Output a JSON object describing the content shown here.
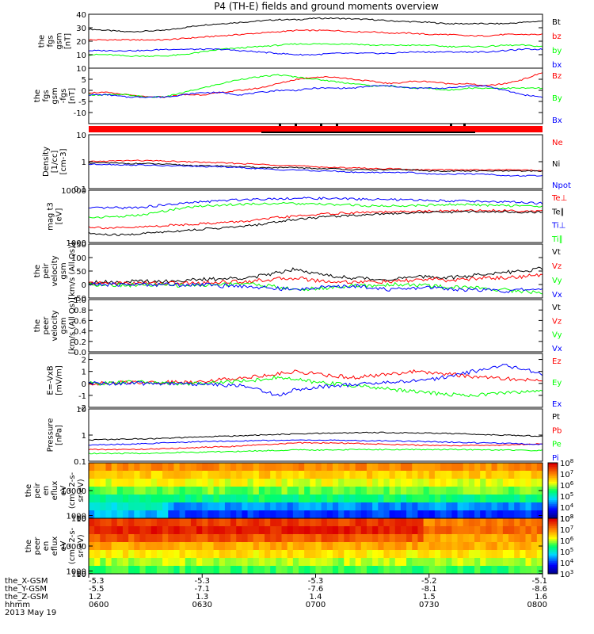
{
  "title": "P4 (TH-E) fields and ground moments overview",
  "colors": {
    "black": "#000000",
    "red": "#ff0000",
    "green": "#00ff00",
    "blue": "#0000ff"
  },
  "chart_data": [
    {
      "type": "line",
      "id": "fgs_mag",
      "ylabel": [
        "the",
        "fgs",
        "gsm",
        "[nT]"
      ],
      "ylim": [
        0,
        40
      ],
      "yticks": [
        10,
        20,
        30,
        40
      ],
      "series": [
        {
          "name": "Bt",
          "color": "black",
          "values": [
            29,
            28,
            27,
            27.5,
            28,
            30,
            32,
            33,
            34,
            35,
            36,
            36,
            37,
            37,
            36.5,
            36,
            35,
            34.5,
            34,
            33,
            33,
            33,
            33,
            34,
            35
          ]
        },
        {
          "name": "bz",
          "color": "red",
          "values": [
            21,
            21,
            21,
            21,
            21,
            22,
            23,
            24,
            25,
            26,
            27,
            28,
            28,
            28,
            27,
            27,
            26,
            26,
            25,
            25,
            24,
            24,
            25,
            25,
            25
          ]
        },
        {
          "name": "by",
          "color": "green",
          "values": [
            10,
            10,
            9,
            9,
            9,
            10,
            12,
            14,
            15,
            16,
            17,
            18,
            18,
            18,
            18,
            17,
            17,
            17,
            17,
            16,
            16,
            16,
            17,
            17,
            16
          ]
        },
        {
          "name": "bx",
          "color": "blue",
          "values": [
            13,
            13,
            13,
            13,
            14,
            14,
            14,
            14,
            13,
            12,
            11,
            10,
            10,
            11,
            11,
            11,
            11,
            12,
            12,
            12,
            12,
            12,
            13,
            14,
            14
          ]
        }
      ]
    },
    {
      "type": "line",
      "id": "fgs_comp",
      "ylabel": [
        "the",
        "fgs",
        "gsm",
        "-fgs",
        "[nT]"
      ],
      "ylim": [
        -15,
        10
      ],
      "yticks": [
        -10,
        -5,
        0,
        5,
        10
      ],
      "series": [
        {
          "name": "Bz",
          "color": "red",
          "values": [
            -1,
            -1,
            -2,
            -3,
            -3,
            -2,
            -2,
            -1,
            0,
            1,
            3,
            5,
            6,
            6,
            5,
            4,
            3,
            4,
            4,
            3,
            3,
            2,
            3,
            5,
            8
          ]
        },
        {
          "name": "By",
          "color": "green",
          "values": [
            -2,
            -2,
            -2,
            -3,
            -3,
            -1,
            1,
            3,
            5,
            6,
            7,
            6,
            5,
            4,
            3,
            2,
            2,
            1,
            1,
            0,
            1,
            1,
            1,
            1,
            1
          ]
        },
        {
          "name": "Bx",
          "color": "blue",
          "values": [
            -2,
            -2,
            -3,
            -3,
            -3,
            -2,
            -1,
            -1,
            -2,
            -1,
            0,
            0,
            1,
            1,
            1,
            2,
            2,
            1,
            1,
            1,
            2,
            2,
            0,
            -2,
            -3
          ]
        }
      ]
    },
    {
      "type": "line",
      "id": "density",
      "log": true,
      "ylabel": [
        "Density",
        "[1/cc]",
        "[cm-3]"
      ],
      "ylim": [
        0.1,
        10
      ],
      "yticks": [
        0.1,
        1.0,
        10.0
      ],
      "series": [
        {
          "name": "Ne",
          "color": "red",
          "values": [
            1.0,
            1.05,
            1.1,
            1.1,
            1.05,
            1.0,
            0.95,
            0.9,
            0.85,
            0.8,
            0.75,
            0.7,
            0.65,
            0.6,
            0.6,
            0.55,
            0.55,
            0.5,
            0.5,
            0.5,
            0.5,
            0.5,
            0.5,
            0.5,
            0.45
          ]
        },
        {
          "name": "Ni",
          "color": "black",
          "values": [
            0.9,
            0.9,
            0.85,
            0.85,
            0.8,
            0.75,
            0.7,
            0.7,
            0.65,
            0.6,
            0.6,
            0.6,
            0.55,
            0.55,
            0.5,
            0.5,
            0.5,
            0.5,
            0.45,
            0.45,
            0.45,
            0.45,
            0.45,
            0.45,
            0.45
          ]
        },
        {
          "name": "Npot",
          "color": "blue",
          "values": [
            0.8,
            0.8,
            0.75,
            0.75,
            0.7,
            0.7,
            0.65,
            0.65,
            0.6,
            0.55,
            0.5,
            0.5,
            0.45,
            0.45,
            0.4,
            0.4,
            0.4,
            0.4,
            0.35,
            0.35,
            0.35,
            0.35,
            0.3,
            0.3,
            0.3
          ]
        }
      ]
    },
    {
      "type": "line",
      "id": "temps",
      "log": true,
      "ylabel": [
        "mag t3",
        "[eV]"
      ],
      "ylim": [
        1000,
        10000
      ],
      "yticks": [
        1000,
        10000
      ],
      "series": [
        {
          "name": "Te⊥",
          "color": "red",
          "values": [
            2000,
            1900,
            1900,
            2000,
            2100,
            2200,
            2300,
            2400,
            2500,
            2700,
            3000,
            3200,
            3400,
            3600,
            3700,
            3800,
            3800,
            3900,
            4000,
            4000,
            4100,
            4100,
            4100,
            4000,
            4000
          ]
        },
        {
          "name": "Te∥",
          "color": "black",
          "values": [
            1500,
            1400,
            1400,
            1500,
            1600,
            1700,
            1800,
            1900,
            2000,
            2200,
            2500,
            2800,
            3000,
            3200,
            3300,
            3500,
            3600,
            3700,
            3800,
            3800,
            3900,
            3900,
            3900,
            3800,
            3800
          ]
        },
        {
          "name": "Ti⊥",
          "color": "blue",
          "values": [
            4500,
            4600,
            4600,
            4800,
            5200,
            5600,
            6000,
            6300,
            6600,
            6800,
            6900,
            7000,
            7000,
            6900,
            6800,
            6700,
            6600,
            6500,
            6400,
            6300,
            6200,
            6100,
            6000,
            5800,
            5600
          ]
        },
        {
          "name": "Ti∥",
          "color": "green",
          "values": [
            3000,
            3100,
            3200,
            3400,
            4000,
            4600,
            5000,
            5200,
            5400,
            5500,
            5600,
            5500,
            5400,
            5300,
            5200,
            5000,
            5000,
            5100,
            5200,
            5300,
            5300,
            5200,
            5100,
            5000,
            4900
          ]
        }
      ]
    },
    {
      "type": "line",
      "id": "peir_vel",
      "ylabel": [
        "the",
        "peir",
        "velocity",
        "gsm",
        "[km/s (All Qs)]"
      ],
      "ylim": [
        -50,
        150
      ],
      "yticks": [
        -50,
        0,
        50,
        100,
        150
      ],
      "series": [
        {
          "name": "Vt",
          "color": "black",
          "values": [
            10,
            10,
            10,
            12,
            12,
            15,
            18,
            20,
            25,
            30,
            45,
            60,
            40,
            30,
            25,
            20,
            20,
            25,
            30,
            25,
            30,
            40,
            45,
            50,
            60
          ]
        },
        {
          "name": "Vz",
          "color": "red",
          "values": [
            5,
            5,
            5,
            5,
            5,
            5,
            5,
            10,
            10,
            15,
            20,
            25,
            15,
            10,
            10,
            10,
            10,
            15,
            20,
            15,
            20,
            25,
            25,
            30,
            35
          ]
        },
        {
          "name": "Vy",
          "color": "green",
          "values": [
            0,
            0,
            -2,
            -2,
            -3,
            -3,
            -3,
            0,
            5,
            0,
            -10,
            -20,
            -15,
            -10,
            -5,
            -5,
            0,
            0,
            -5,
            -10,
            -10,
            -15,
            -20,
            -25,
            -30
          ]
        },
        {
          "name": "Vx",
          "color": "blue",
          "values": [
            0,
            0,
            0,
            0,
            0,
            0,
            0,
            -5,
            -5,
            -10,
            -15,
            -20,
            -10,
            -10,
            -5,
            -10,
            -20,
            -15,
            -10,
            -15,
            -20,
            -20,
            -25,
            -20,
            -15
          ]
        }
      ]
    },
    {
      "type": "line",
      "id": "peer_vel",
      "ylabel": [
        "the",
        "peer",
        "velocity",
        "gsm",
        "[km/s (All Qs)]"
      ],
      "ylim": [
        0,
        1
      ],
      "yticks": [
        0.0,
        0.2,
        0.4,
        0.6,
        0.8,
        1.0
      ],
      "series": [
        {
          "name": "Vt",
          "color": "black",
          "values": []
        },
        {
          "name": "Vz",
          "color": "red",
          "values": []
        },
        {
          "name": "Vy",
          "color": "green",
          "values": []
        },
        {
          "name": "Vx",
          "color": "blue",
          "values": []
        }
      ]
    },
    {
      "type": "line",
      "id": "efield",
      "ylabel": [
        "E=-VxB",
        "[mV/m]"
      ],
      "ylim": [
        -2,
        2.5
      ],
      "yticks": [
        -2,
        -1,
        0,
        1,
        2
      ],
      "series": [
        {
          "name": "Ez",
          "color": "red",
          "values": [
            0,
            0,
            0.1,
            0.1,
            0.1,
            0.1,
            0.2,
            0.3,
            0.5,
            0.6,
            0.8,
            1.0,
            0.8,
            0.6,
            0.5,
            0.6,
            0.8,
            1.0,
            0.9,
            0.8,
            0.6,
            0.5,
            0.4,
            0.3,
            0.2
          ]
        },
        {
          "name": "Ey",
          "color": "green",
          "values": [
            0,
            0,
            0.1,
            0.1,
            0,
            0,
            0,
            0.1,
            0.2,
            0.3,
            0.5,
            0.3,
            0.1,
            0,
            -0.2,
            -0.3,
            -0.5,
            -0.6,
            -0.8,
            -0.9,
            -1.0,
            -0.9,
            -0.8,
            -0.7,
            -0.6
          ]
        },
        {
          "name": "Ex",
          "color": "blue",
          "values": [
            0,
            0,
            0,
            0,
            0,
            0,
            -0.1,
            -0.1,
            -0.2,
            -0.5,
            -1.0,
            -0.5,
            -0.3,
            -0.2,
            -0.1,
            0,
            0.1,
            0.2,
            0.3,
            0.6,
            0.9,
            1.2,
            1.5,
            1.2,
            0.8
          ]
        }
      ]
    },
    {
      "type": "line",
      "id": "pressure",
      "log": true,
      "ylabel": [
        "Pressure",
        "[nPa]"
      ],
      "ylim": [
        0.1,
        10
      ],
      "yticks": [
        0.1,
        1.0,
        10.0
      ],
      "series": [
        {
          "name": "Pt",
          "color": "black",
          "values": [
            0.65,
            0.68,
            0.7,
            0.72,
            0.75,
            0.8,
            0.85,
            0.9,
            0.95,
            1.0,
            1.05,
            1.1,
            1.15,
            1.2,
            1.22,
            1.25,
            1.25,
            1.22,
            1.2,
            1.15,
            1.1,
            1.05,
            1.0,
            0.95,
            0.9
          ]
        },
        {
          "name": "Pb",
          "color": "red",
          "values": [
            0.28,
            0.28,
            0.28,
            0.29,
            0.3,
            0.32,
            0.34,
            0.36,
            0.38,
            0.42,
            0.46,
            0.5,
            0.5,
            0.5,
            0.48,
            0.46,
            0.44,
            0.42,
            0.4,
            0.4,
            0.4,
            0.4,
            0.42,
            0.44,
            0.46
          ]
        },
        {
          "name": "Pe",
          "color": "green",
          "values": [
            0.2,
            0.2,
            0.2,
            0.2,
            0.21,
            0.22,
            0.22,
            0.23,
            0.24,
            0.25,
            0.26,
            0.27,
            0.27,
            0.27,
            0.28,
            0.28,
            0.28,
            0.28,
            0.28,
            0.28,
            0.28,
            0.27,
            0.27,
            0.26,
            0.26
          ]
        },
        {
          "name": "Pi",
          "color": "blue",
          "values": [
            0.42,
            0.43,
            0.45,
            0.47,
            0.5,
            0.53,
            0.56,
            0.58,
            0.6,
            0.62,
            0.63,
            0.64,
            0.64,
            0.63,
            0.62,
            0.61,
            0.6,
            0.58,
            0.56,
            0.54,
            0.52,
            0.5,
            0.48,
            0.46,
            0.44
          ]
        }
      ]
    },
    {
      "type": "heatmap",
      "id": "peir_spec",
      "ylabel": [
        "the",
        "peir",
        "en",
        "eflux",
        "eV",
        "(cm^2-s-",
        "sr-eV)"
      ],
      "ylim": [
        10,
        20000
      ],
      "yticks": [
        10,
        100,
        1000,
        10000
      ],
      "colorbar": {
        "ticks": [
          "10^3",
          "10^4",
          "10^5",
          "10^6",
          "10^7",
          "10^8"
        ],
        "range": [
          3,
          8
        ]
      },
      "profile": [
        7.0,
        6.6,
        6.2,
        5.8,
        5.4,
        5.0,
        4.6
      ]
    },
    {
      "type": "heatmap",
      "id": "peer_spec",
      "ylabel": [
        "the",
        "peer",
        "en",
        "eflux",
        "eV",
        "(cm^2-s-",
        "sr-eV)"
      ],
      "ylim": [
        8,
        20000
      ],
      "yticks": [
        10,
        100,
        1000,
        10000
      ],
      "colorbar": {
        "ticks": [
          "10^3",
          "10^4",
          "10^5",
          "10^6",
          "10^7",
          "10^8"
        ],
        "range": [
          3,
          8
        ]
      },
      "profile": [
        7.6,
        7.8,
        7.4,
        6.8,
        6.4,
        6.0,
        5.6
      ]
    }
  ],
  "x_axis": {
    "row_labels": [
      "the_X-GSM",
      "the_Y-GSM",
      "the_Z-GSM",
      "hhmm"
    ],
    "date": "2013 May 19",
    "ticks": [
      {
        "vals": [
          "-5.3",
          "-5.5",
          "1.2",
          "0600"
        ]
      },
      {
        "vals": [
          "-5.3",
          "-7.1",
          "1.3",
          "0630"
        ]
      },
      {
        "vals": [
          "-5.3",
          "-7.6",
          "1.4",
          "0700"
        ]
      },
      {
        "vals": [
          "-5.2",
          "-8.1",
          "1.5",
          "0730"
        ]
      },
      {
        "vals": [
          "-5.1",
          "-8.6",
          "1.6",
          "0800"
        ]
      }
    ]
  }
}
